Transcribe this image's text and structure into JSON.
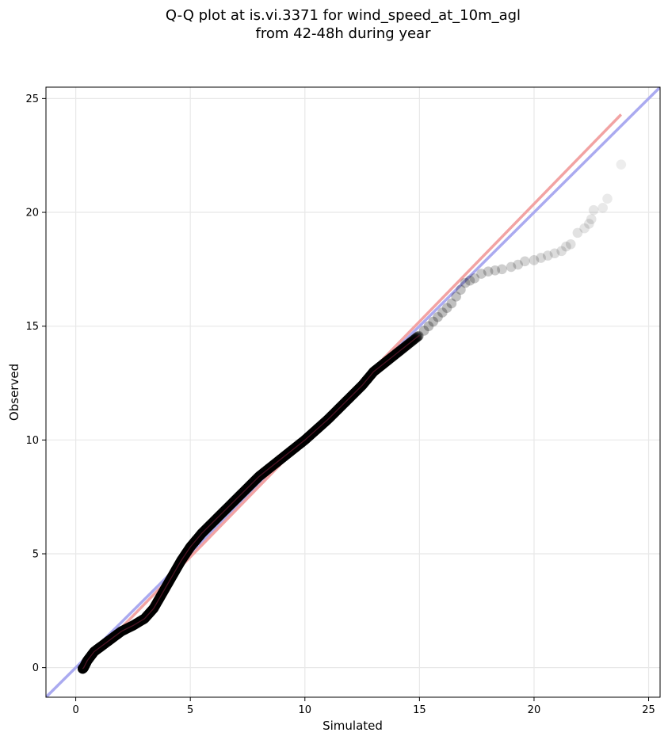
{
  "chart_data": {
    "type": "scatter",
    "title_lines": [
      "Q-Q plot at is.vi.3371 for wind_speed_at_10m_agl",
      "from 42-48h during year"
    ],
    "xlabel": "Simulated",
    "ylabel": "Observed",
    "xlim": [
      -1.3,
      25.5
    ],
    "ylim": [
      -1.3,
      25.5
    ],
    "xticks": [
      0,
      5,
      10,
      15,
      20,
      25
    ],
    "yticks": [
      0,
      5,
      10,
      15,
      20,
      25
    ],
    "grid": true,
    "colors": {
      "points": "#000000",
      "identity_line": "#aaaaf0",
      "fit_line": "#f2a3a3"
    },
    "reference_lines": [
      {
        "kind": "identity",
        "x": [
          -1.3,
          25.5
        ],
        "y": [
          -1.3,
          25.5
        ]
      },
      {
        "kind": "fit",
        "x": [
          0.3,
          23.8
        ],
        "y": [
          0.0,
          24.3
        ]
      }
    ],
    "qq_curve": {
      "x": [
        0.3,
        0.35,
        0.5,
        0.8,
        1.2,
        1.6,
        2.0,
        2.5,
        3.0,
        3.4,
        3.8,
        4.2,
        4.6,
        5.0,
        5.5,
        6.0,
        6.5,
        7.0,
        7.5,
        8.0,
        8.5,
        9.0,
        9.5,
        10.0,
        10.5,
        11.0,
        11.5,
        12.0,
        12.5,
        13.0,
        13.5,
        14.0,
        14.5,
        15.0
      ],
      "y": [
        -0.05,
        0.0,
        0.3,
        0.7,
        1.0,
        1.3,
        1.6,
        1.85,
        2.15,
        2.6,
        3.3,
        4.0,
        4.7,
        5.3,
        5.9,
        6.4,
        6.9,
        7.4,
        7.9,
        8.4,
        8.8,
        9.2,
        9.6,
        10.0,
        10.45,
        10.9,
        11.4,
        11.9,
        12.4,
        13.0,
        13.4,
        13.8,
        14.2,
        14.6
      ]
    },
    "tail_points": {
      "x": [
        15.2,
        15.4,
        15.6,
        15.8,
        16.0,
        16.2,
        16.4,
        16.6,
        16.8,
        17.0,
        17.2,
        17.4,
        17.7,
        18.0,
        18.3,
        18.6,
        19.0,
        19.3,
        19.6,
        20.0,
        20.3,
        20.6,
        20.9,
        21.2,
        21.4,
        21.6,
        21.9,
        22.2,
        22.4,
        22.5,
        22.6,
        23.0,
        23.2,
        23.8
      ],
      "y": [
        14.8,
        15.0,
        15.2,
        15.4,
        15.6,
        15.8,
        16.0,
        16.3,
        16.6,
        16.9,
        17.0,
        17.1,
        17.3,
        17.4,
        17.45,
        17.5,
        17.6,
        17.7,
        17.85,
        17.9,
        18.0,
        18.1,
        18.2,
        18.3,
        18.5,
        18.6,
        19.1,
        19.3,
        19.5,
        19.7,
        20.1,
        20.2,
        20.6,
        22.1
      ]
    }
  }
}
